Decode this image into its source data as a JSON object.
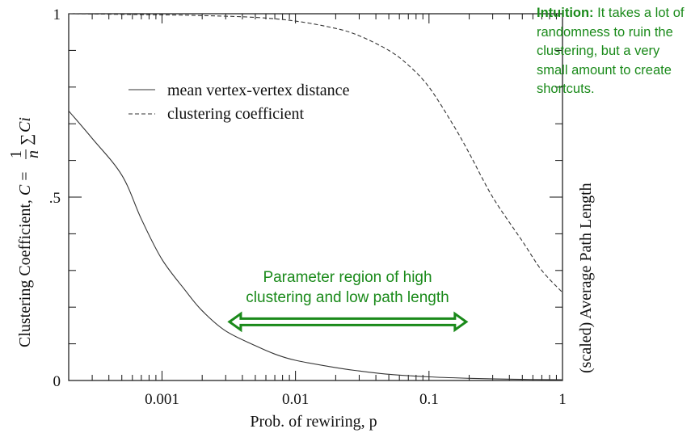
{
  "chart_data": {
    "type": "line",
    "xscale": "log",
    "xlim": [
      0.0002,
      1
    ],
    "ylim": [
      0,
      1
    ],
    "xlabel": "Prob. of rewiring, p",
    "ylabel": "Clustering Coefficient, C = (1/n) Σ Ci",
    "ylabel_parts": {
      "main": "Clustering Coefficient, ",
      "var": "C",
      "eq": " = ",
      "num": "1",
      "den": "n",
      "sum": "∑",
      "ci": " Ci"
    },
    "y2label": "(scaled) Average Path Length",
    "x_ticks": [
      {
        "value": 0.001,
        "label": "0.001"
      },
      {
        "value": 0.01,
        "label": "0.01"
      },
      {
        "value": 0.1,
        "label": "0.1"
      },
      {
        "value": 1,
        "label": "1"
      }
    ],
    "y_ticks": [
      {
        "value": 0,
        "label": "0"
      },
      {
        "value": 0.5,
        "label": ".5"
      },
      {
        "value": 1,
        "label": "1"
      }
    ],
    "series": [
      {
        "name": "mean vertex-vertex distance",
        "style": "solid",
        "x": [
          0.0002,
          0.0003,
          0.0005,
          0.0007,
          0.001,
          0.0015,
          0.002,
          0.003,
          0.005,
          0.007,
          0.01,
          0.02,
          0.03,
          0.05,
          0.1,
          0.2,
          0.5,
          1
        ],
        "y": [
          0.735,
          0.66,
          0.56,
          0.44,
          0.33,
          0.245,
          0.19,
          0.135,
          0.095,
          0.072,
          0.055,
          0.035,
          0.026,
          0.017,
          0.01,
          0.006,
          0.003,
          0.002
        ]
      },
      {
        "name": "clustering coefficient",
        "style": "dashed",
        "x": [
          0.0002,
          0.001,
          0.002,
          0.005,
          0.01,
          0.02,
          0.03,
          0.05,
          0.07,
          0.1,
          0.15,
          0.2,
          0.3,
          0.5,
          0.7,
          1
        ],
        "y": [
          1.0,
          0.997,
          0.995,
          0.99,
          0.98,
          0.96,
          0.94,
          0.9,
          0.86,
          0.8,
          0.7,
          0.62,
          0.5,
          0.38,
          0.3,
          0.24
        ]
      }
    ],
    "annotations": {
      "region_line1": "Parameter region of high",
      "region_line2": "clustering and low path length",
      "region_arrow": {
        "from": 0.0032,
        "to": 0.19,
        "y": 0.16
      }
    }
  },
  "intuition": {
    "label": "Intuition:",
    "text": " It takes a lot of randomness to ruin the clustering, but a very small amount to create shortcuts."
  },
  "colors": {
    "annotation": "#1a8a1a",
    "axes": "#111111"
  }
}
